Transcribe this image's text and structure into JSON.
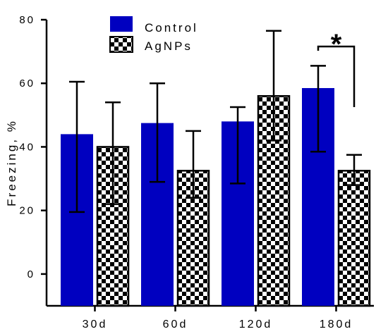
{
  "chart_data": {
    "type": "bar",
    "title": "",
    "xlabel": "",
    "ylabel": "Freezing, %",
    "ylim": [
      -10,
      80
    ],
    "yticks": [
      "0",
      "20",
      "40",
      "60",
      "80"
    ],
    "ytick_values": [
      0,
      20,
      40,
      60,
      80
    ],
    "categories": [
      "30d",
      "60d",
      "120d",
      "180d"
    ],
    "series": [
      {
        "name": "Control",
        "color": "#0000c0",
        "pattern": "solid",
        "values": [
          44,
          47.5,
          48,
          58.5
        ],
        "error_low": [
          19.5,
          29,
          28.5,
          38.5
        ],
        "error_high": [
          60.5,
          60,
          52.5,
          65.5
        ]
      },
      {
        "name": "AgNPs",
        "color": "#000000",
        "pattern": "checkerboard",
        "values": [
          40,
          32.5,
          56,
          32.5
        ],
        "error_low": [
          22,
          24,
          42,
          28
        ],
        "error_high": [
          54,
          45,
          76.5,
          37.5
        ]
      }
    ],
    "annotations": [
      {
        "text": "*",
        "category": "180d",
        "between": [
          "Control",
          "AgNPs"
        ]
      }
    ],
    "legend": {
      "placement": "top-center"
    },
    "grid": false
  }
}
